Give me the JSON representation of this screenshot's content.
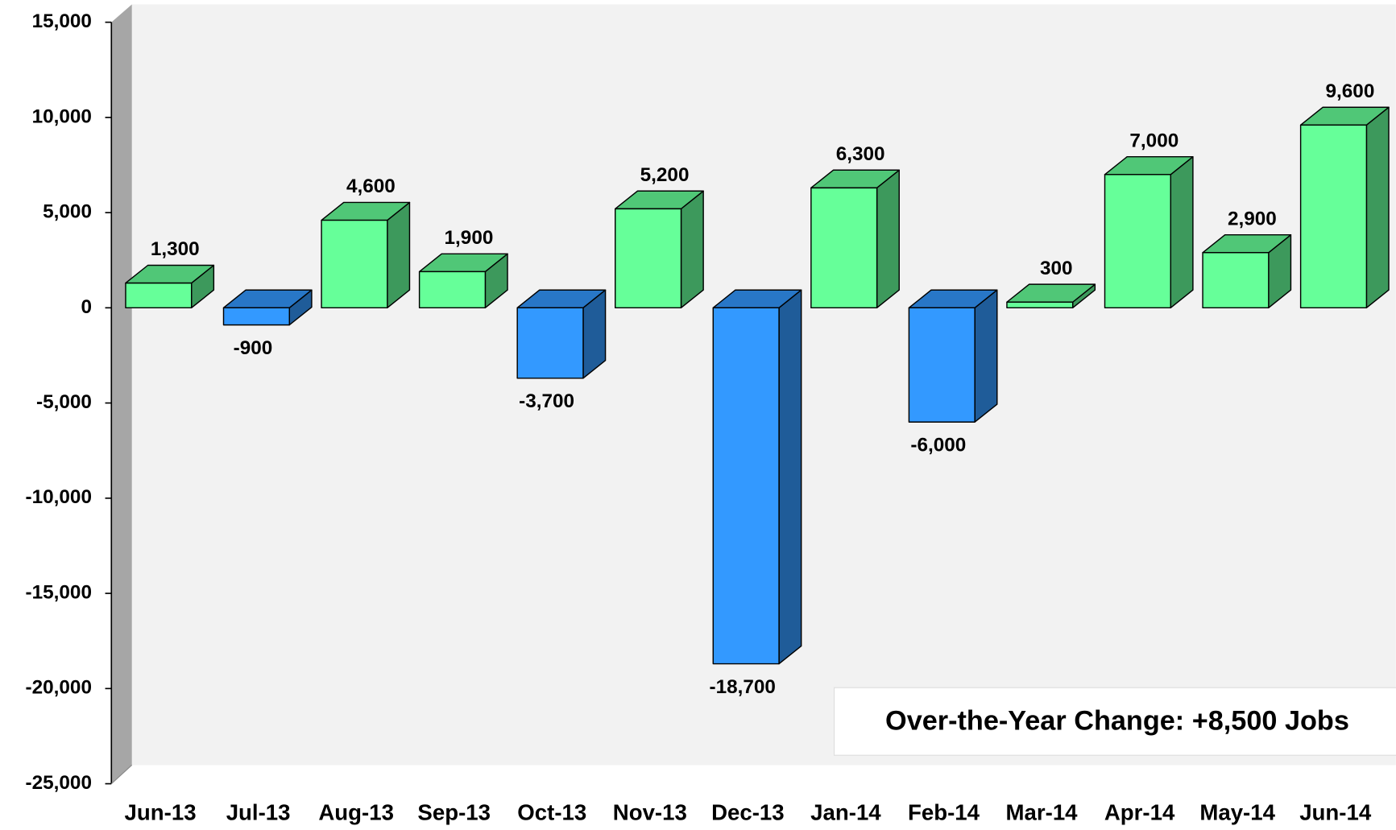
{
  "chart_data": {
    "type": "bar3d",
    "categories": [
      "Jun-13",
      "Jul-13",
      "Aug-13",
      "Sep-13",
      "Oct-13",
      "Nov-13",
      "Dec-13",
      "Jan-14",
      "Feb-14",
      "Mar-14",
      "Apr-14",
      "May-14",
      "Jun-14"
    ],
    "values": [
      1300,
      -900,
      4600,
      1900,
      -3700,
      5200,
      -18700,
      6300,
      -6000,
      300,
      7000,
      2900,
      9600
    ],
    "value_labels": [
      "1,300",
      "-900",
      "4,600",
      "1,900",
      "-3,700",
      "5,200",
      "-18,700",
      "6,300",
      "-6,000",
      "300",
      "7,000",
      "2,900",
      "9,600"
    ],
    "positive_color": "#66ff99",
    "negative_color": "#3399ff",
    "ylim": [
      -25000,
      15000
    ],
    "yticks": [
      {
        "value": -25000,
        "label": "-25,000"
      },
      {
        "value": -20000,
        "label": "-20,000"
      },
      {
        "value": -15000,
        "label": "-15,000"
      },
      {
        "value": -10000,
        "label": "-10,000"
      },
      {
        "value": -5000,
        "label": "-5,000"
      },
      0,
      {
        "value": 5000,
        "label": "5,000"
      },
      {
        "value": 10000,
        "label": "10,000"
      },
      {
        "value": 15000,
        "label": "15,000"
      }
    ],
    "grid": false,
    "annotation": "Over-the-Year Change: +8,500 Jobs"
  }
}
